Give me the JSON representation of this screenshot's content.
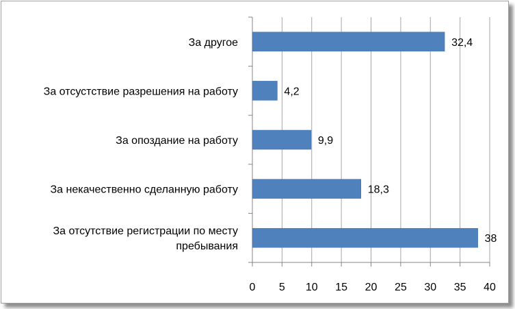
{
  "chart_data": {
    "type": "bar",
    "orientation": "horizontal",
    "categories": [
      "За другое",
      "За отсустствие разрешения  на работу",
      "За опоздание на работу",
      "За некачественно сделанную работу",
      "За отсутствие регистрации по месту пребывания"
    ],
    "category_lines": [
      [
        "За другое"
      ],
      [
        "За отсустствие разрешения  на работу"
      ],
      [
        "За опоздание на работу"
      ],
      [
        "За некачественно сделанную работу"
      ],
      [
        "За отсутствие регистрации по месту",
        "пребывания"
      ]
    ],
    "values": [
      32.4,
      4.2,
      9.9,
      18.3,
      38
    ],
    "value_labels": [
      "32,4",
      "4,2",
      "9,9",
      "18,3",
      "38"
    ],
    "xlim": [
      0,
      40
    ],
    "xticks": [
      0,
      5,
      10,
      15,
      20,
      25,
      30,
      35,
      40
    ],
    "grid": true,
    "bar_color": "#4f81bd",
    "grid_color": "#a6a6a6"
  }
}
